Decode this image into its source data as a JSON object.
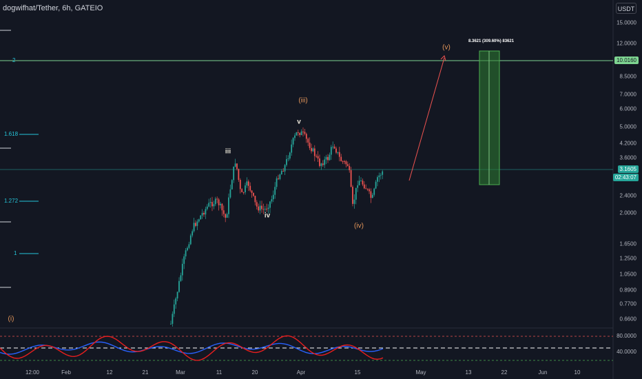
{
  "header": {
    "symbol_title": "dogwifhat/Tether, 6h, GATEIO",
    "currency_button": "USDT"
  },
  "price_axis": {
    "ticks": [
      "15.0000",
      "12.0000",
      "8.5000",
      "7.0000",
      "6.0000",
      "5.0000",
      "4.2000",
      "3.6000",
      "2.4000",
      "2.0000",
      "1.6500",
      "1.2500",
      "1.0500",
      "0.8900",
      "0.7700",
      "0.6600"
    ],
    "level_tag": "10.0160",
    "last_price": "3.1605",
    "countdown": "02:43:07"
  },
  "oscillator_axis": {
    "upper": "80.0000",
    "lower": "40.0000"
  },
  "time_axis": [
    "12:00",
    "Feb",
    "12",
    "21",
    "Mar",
    "11",
    "20",
    "Apr",
    "15",
    "May",
    "13",
    "22",
    "Jun",
    "10"
  ],
  "fib_labels": [
    "2",
    "1.618",
    "1.272",
    "1"
  ],
  "wave_labels": {
    "i": "(i)",
    "iii_major": "(iii)",
    "iv_major": "(iv)",
    "v_major": "(v)",
    "iii_minor": "iii",
    "iv_minor": "iv",
    "v_minor": "v"
  },
  "target_box_label": "8.3621 (309.60%) 83621",
  "colors": {
    "background": "#131722",
    "up": "#26a69a",
    "down": "#ef5350",
    "fib": "#26c6da",
    "target_level": "#7ed591",
    "projection": "#ef5350",
    "oscillator_red": "#e91e1e",
    "oscillator_blue": "#2962ff",
    "orange_label": "#e4965a"
  }
}
